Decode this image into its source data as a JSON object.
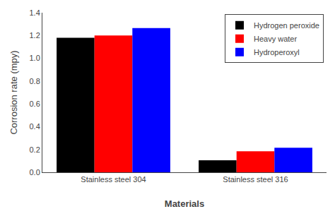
{
  "chart_data": {
    "type": "bar",
    "categories": [
      "Stainless steel 304",
      "Stainless steel 316"
    ],
    "series": [
      {
        "name": "Hydrogen peroxide",
        "color": "#000000",
        "values": [
          1.18,
          0.105
        ]
      },
      {
        "name": "Heavy water",
        "color": "#ff0000",
        "values": [
          1.2,
          0.185
        ]
      },
      {
        "name": "Hydroperoxyl",
        "color": "#0000ff",
        "values": [
          1.265,
          0.215
        ]
      }
    ],
    "xlabel": "Materials",
    "ylabel": "Corrosion rate (mpy)",
    "ylim": [
      0,
      1.4
    ],
    "yticks": [
      {
        "value": 0.0,
        "label": "0.0"
      },
      0.2,
      0.4,
      0.6,
      0.8,
      {
        "value": 1.0,
        "label": "1.0"
      },
      1.2,
      1.4
    ],
    "grid": false,
    "legend": "upper right"
  }
}
